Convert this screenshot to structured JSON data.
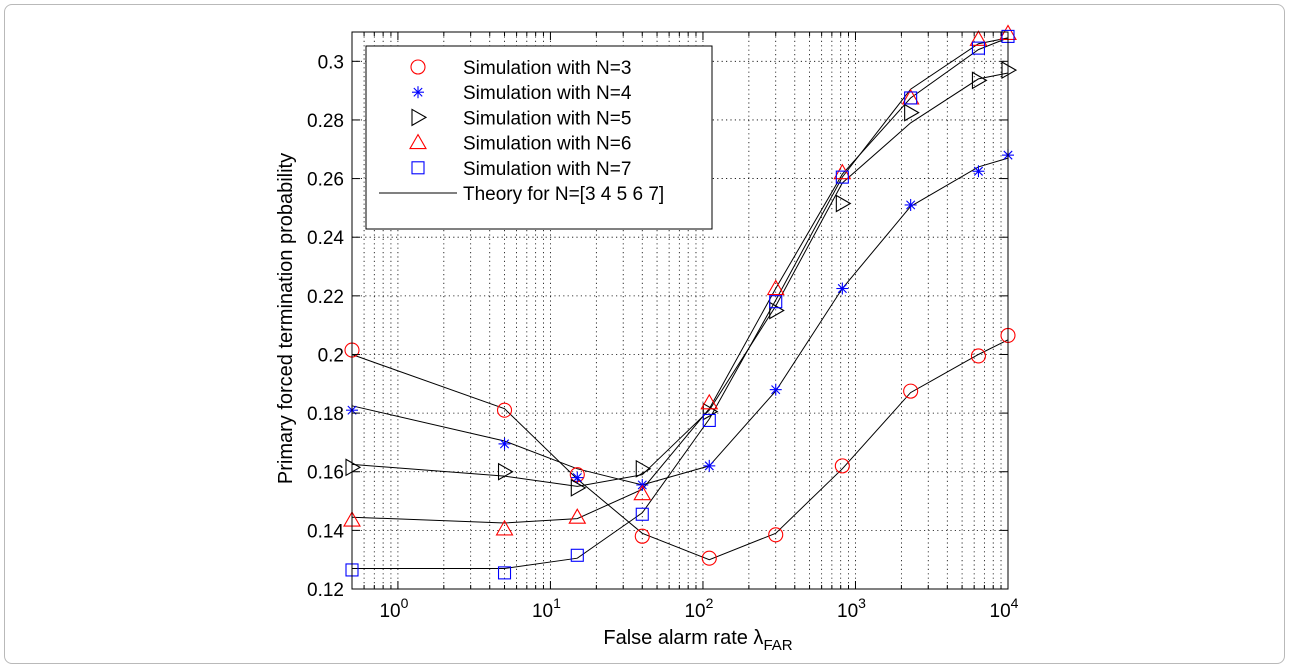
{
  "chart_data": {
    "type": "line",
    "title": "",
    "xlabel": "False alarm rate λ",
    "xlabel_subscript": "FAR",
    "ylabel": "Primary forced termination probability",
    "xscale": "log",
    "xlim": [
      0.5,
      10000
    ],
    "ylim": [
      0.12,
      0.31
    ],
    "x_ticks": [
      {
        "value": 1,
        "base": "10",
        "exp": "0"
      },
      {
        "value": 10,
        "base": "10",
        "exp": "1"
      },
      {
        "value": 100,
        "base": "10",
        "exp": "2"
      },
      {
        "value": 1000,
        "base": "10",
        "exp": "3"
      },
      {
        "value": 10000,
        "base": "10",
        "exp": "4"
      }
    ],
    "y_ticks": [
      {
        "value": 0.12,
        "label": "0.12"
      },
      {
        "value": 0.14,
        "label": "0.14"
      },
      {
        "value": 0.16,
        "label": "0.16"
      },
      {
        "value": 0.18,
        "label": "0.18"
      },
      {
        "value": 0.2,
        "label": "0.2"
      },
      {
        "value": 0.22,
        "label": "0.22"
      },
      {
        "value": 0.24,
        "label": "0.24"
      },
      {
        "value": 0.26,
        "label": "0.26"
      },
      {
        "value": 0.28,
        "label": "0.28"
      },
      {
        "value": 0.3,
        "label": "0.3"
      }
    ],
    "grid": true,
    "legend_position": "top-left",
    "x": [
      0.5,
      5,
      15,
      40,
      110,
      300,
      820,
      2300,
      6400,
      10000
    ],
    "series": [
      {
        "name": "Simulation with N=3",
        "marker": "circle",
        "color": "#ff0000",
        "values": [
          0.2015,
          0.181,
          0.159,
          0.138,
          0.1305,
          0.1385,
          0.162,
          0.1875,
          0.1995,
          0.2065
        ]
      },
      {
        "name": "Simulation with N=4",
        "marker": "asterisk",
        "color": "#0000ff",
        "values": [
          0.181,
          0.1695,
          0.158,
          0.1555,
          0.162,
          0.188,
          0.2225,
          0.251,
          0.2625,
          0.268
        ]
      },
      {
        "name": "Simulation with N=5",
        "marker": "triangle-right",
        "color": "#000000",
        "values": [
          0.1615,
          0.16,
          0.1545,
          0.161,
          0.1805,
          0.215,
          0.2515,
          0.2825,
          0.2935,
          0.297
        ]
      },
      {
        "name": "Simulation with N=6",
        "marker": "triangle-up",
        "color": "#ff0000",
        "values": [
          0.1435,
          0.1405,
          0.1445,
          0.1525,
          0.1835,
          0.2225,
          0.262,
          0.2875,
          0.3075,
          0.3095
        ]
      },
      {
        "name": "Simulation with N=7",
        "marker": "square",
        "color": "#0000ff",
        "values": [
          0.1265,
          0.1255,
          0.1315,
          0.1455,
          0.1775,
          0.218,
          0.2605,
          0.2875,
          0.3045,
          0.3085
        ]
      }
    ],
    "theory": {
      "name": "Theory for N=[3 4 5 6 7]",
      "color": "#000000",
      "curves": [
        [
          0.2,
          0.1815,
          0.1575,
          0.139,
          0.13,
          0.139,
          0.161,
          0.187,
          0.2,
          0.205
        ],
        [
          0.1825,
          0.1705,
          0.161,
          0.1555,
          0.162,
          0.1875,
          0.2225,
          0.2505,
          0.264,
          0.267
        ],
        [
          0.1625,
          0.1585,
          0.155,
          0.159,
          0.181,
          0.2165,
          0.2585,
          0.279,
          0.294,
          0.296
        ],
        [
          0.1445,
          0.1425,
          0.144,
          0.154,
          0.1815,
          0.2225,
          0.2615,
          0.2875,
          0.304,
          0.308
        ],
        [
          0.127,
          0.127,
          0.1305,
          0.146,
          0.178,
          0.2185,
          0.2605,
          0.2905,
          0.306,
          0.308
        ]
      ]
    }
  }
}
